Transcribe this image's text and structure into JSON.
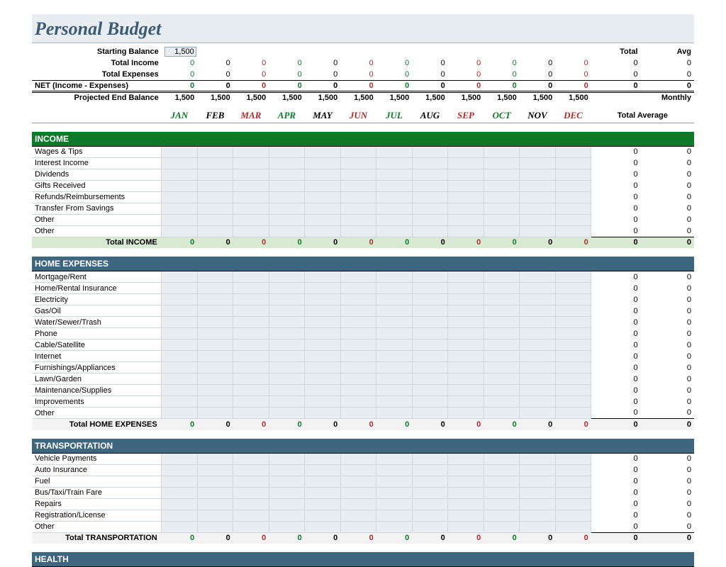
{
  "title": "Personal Budget",
  "summary": {
    "starting_label": "Starting Balance",
    "starting_value": "1,500",
    "total_income_label": "Total Income",
    "total_expenses_label": "Total Expenses",
    "net_label": "NET (Income - Expenses)",
    "projected_label": "Projected End Balance",
    "total_header": "Total",
    "avg_header": "Avg",
    "monthly_label": "Monthly",
    "total_average_label": "Total Average",
    "income_vals": [
      "0",
      "0",
      "0",
      "0",
      "0",
      "0",
      "0",
      "0",
      "0",
      "0",
      "0",
      "0"
    ],
    "expense_vals": [
      "0",
      "0",
      "0",
      "0",
      "0",
      "0",
      "0",
      "0",
      "0",
      "0",
      "0",
      "0"
    ],
    "net_vals": [
      "0",
      "0",
      "0",
      "0",
      "0",
      "0",
      "0",
      "0",
      "0",
      "0",
      "0",
      "0"
    ],
    "proj_vals": [
      "1,500",
      "1,500",
      "1,500",
      "1,500",
      "1,500",
      "1,500",
      "1,500",
      "1,500",
      "1,500",
      "1,500",
      "1,500",
      "1,500"
    ],
    "income_total": "0",
    "income_avg": "0",
    "expense_total": "0",
    "expense_avg": "0",
    "net_total": "0",
    "net_avg": "0"
  },
  "months": [
    {
      "abbr": "JAN",
      "color": "#0d7a29"
    },
    {
      "abbr": "FEB",
      "color": "#000000"
    },
    {
      "abbr": "MAR",
      "color": "#b02a2a"
    },
    {
      "abbr": "APR",
      "color": "#0d7a29"
    },
    {
      "abbr": "MAY",
      "color": "#000000"
    },
    {
      "abbr": "JUN",
      "color": "#b02a2a"
    },
    {
      "abbr": "JUL",
      "color": "#0d7a29"
    },
    {
      "abbr": "AUG",
      "color": "#000000"
    },
    {
      "abbr": "SEP",
      "color": "#b02a2a"
    },
    {
      "abbr": "OCT",
      "color": "#0d7a29"
    },
    {
      "abbr": "NOV",
      "color": "#000000"
    },
    {
      "abbr": "DEC",
      "color": "#b02a2a"
    }
  ],
  "colors": {
    "green": "#0d7a29",
    "red": "#b02a2a",
    "black": "#000000"
  },
  "sections": [
    {
      "key": "income",
      "title": "INCOME",
      "bar_class": "sect-income",
      "total_class": "income",
      "total_label": "Total INCOME",
      "items": [
        "Wages & Tips",
        "Interest Income",
        "Dividends",
        "Gifts Received",
        "Refunds/Reimbursements",
        "Transfer From Savings",
        "Other",
        "Other"
      ]
    },
    {
      "key": "home",
      "title": "HOME EXPENSES",
      "bar_class": "sect-blue",
      "total_class": "",
      "total_label": "Total HOME EXPENSES",
      "items": [
        "Mortgage/Rent",
        "Home/Rental Insurance",
        "Electricity",
        "Gas/Oil",
        "Water/Sewer/Trash",
        "Phone",
        "Cable/Satellite",
        "Internet",
        "Furnishings/Appliances",
        "Lawn/Garden",
        "Maintenance/Supplies",
        "Improvements",
        "Other"
      ]
    },
    {
      "key": "transport",
      "title": "TRANSPORTATION",
      "bar_class": "sect-blue",
      "total_class": "",
      "total_label": "Total TRANSPORTATION",
      "items": [
        "Vehicle Payments",
        "Auto Insurance",
        "Fuel",
        "Bus/Taxi/Train Fare",
        "Repairs",
        "Registration/License",
        "Other"
      ]
    },
    {
      "key": "health",
      "title": "HEALTH",
      "bar_class": "sect-blue",
      "total_class": "",
      "total_label": "",
      "items": []
    }
  ],
  "zero": "0"
}
